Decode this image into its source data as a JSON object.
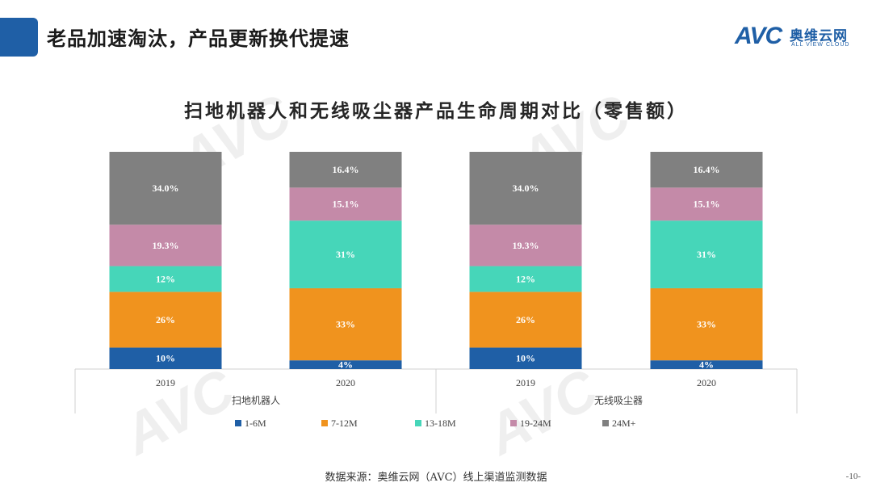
{
  "header": {
    "title": "老品加速淘汰，产品更新换代提速"
  },
  "logo": {
    "avc": "AVC",
    "cn_name": "奥维云网",
    "en_name": "ALL VIEW CLOUD"
  },
  "footer": {
    "source": "数据来源：奥维云网（AVC）线上渠道监测数据",
    "page": "-10-"
  },
  "colors": {
    "accent": "#1f5fa6",
    "1-6M": "#1f5fa6",
    "7-12M": "#f0931e",
    "13-18M": "#46d6b9",
    "19-24M": "#c48aa8",
    "24M+": "#808080"
  },
  "chart_data": {
    "type": "bar",
    "stacked": true,
    "title": "扫地机器人和无线吸尘器产品生命周期对比（零售额）",
    "groups": [
      "扫地机器人",
      "无线吸尘器"
    ],
    "categories": [
      "2019",
      "2020",
      "2019",
      "2020"
    ],
    "category_groups": [
      0,
      0,
      1,
      1
    ],
    "series": [
      {
        "name": "1-6M",
        "color": "#1f5fa6",
        "values": [
          10,
          4,
          10,
          4
        ],
        "labels": [
          "10%",
          "4%",
          "10%",
          "4%"
        ]
      },
      {
        "name": "7-12M",
        "color": "#f0931e",
        "values": [
          26,
          33,
          26,
          33
        ],
        "labels": [
          "26%",
          "33%",
          "26%",
          "33%"
        ]
      },
      {
        "name": "13-18M",
        "color": "#46d6b9",
        "values": [
          12,
          31,
          12,
          31
        ],
        "labels": [
          "12%",
          "31%",
          "12%",
          "31%"
        ]
      },
      {
        "name": "19-24M",
        "color": "#c48aa8",
        "values": [
          19.3,
          15.1,
          19.3,
          15.1
        ],
        "labels": [
          "19.3%",
          "15.1%",
          "19.3%",
          "15.1%"
        ]
      },
      {
        "name": "24M+",
        "color": "#808080",
        "values": [
          34.0,
          16.4,
          34.0,
          16.4
        ],
        "labels": [
          "34.0%",
          "16.4%",
          "34.0%",
          "16.4%"
        ]
      }
    ],
    "ylim": [
      0,
      100
    ],
    "legend_position": "bottom",
    "grid": false
  }
}
